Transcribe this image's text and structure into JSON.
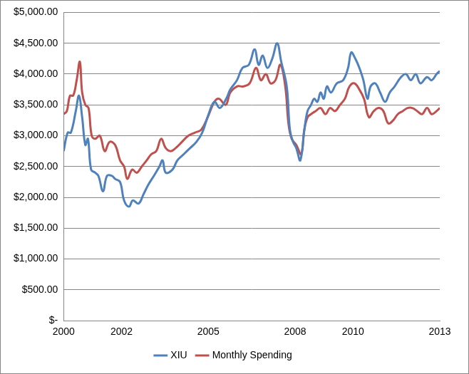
{
  "chart_data": {
    "type": "line",
    "xlim": [
      2000,
      2013
    ],
    "xticks": [
      2000,
      2002,
      2005,
      2008,
      2010,
      2013
    ],
    "ylim": [
      0,
      5000
    ],
    "yticks": [
      {
        "value": 0,
        "label": "$-"
      },
      {
        "value": 500,
        "label": "$500.00"
      },
      {
        "value": 1000,
        "label": "$1,000.00"
      },
      {
        "value": 1500,
        "label": "$1,500.00"
      },
      {
        "value": 2000,
        "label": "$2,000.00"
      },
      {
        "value": 2500,
        "label": "$2,500.00"
      },
      {
        "value": 3000,
        "label": "$3,000.00"
      },
      {
        "value": 3500,
        "label": "$3,500.00"
      },
      {
        "value": 4000,
        "label": "$4,000.00"
      },
      {
        "value": 4500,
        "label": "$4,500.00"
      },
      {
        "value": 5000,
        "label": "$5,000.00"
      }
    ],
    "grid": "y",
    "legend": "bottom",
    "series": [
      {
        "name": "XIU",
        "color": "#4f81bd",
        "x": [
          2000.0,
          2000.14,
          2000.25,
          2000.42,
          2000.53,
          2000.64,
          2000.75,
          2000.84,
          2000.95,
          2001.09,
          2001.2,
          2001.36,
          2001.5,
          2001.67,
          2001.78,
          2001.95,
          2002.09,
          2002.26,
          2002.39,
          2002.59,
          2002.76,
          2002.92,
          2003.12,
          2003.31,
          2003.42,
          2003.53,
          2003.76,
          2003.93,
          2004.15,
          2004.37,
          2004.59,
          2004.79,
          2005.01,
          2005.21,
          2005.4,
          2005.62,
          2005.76,
          2005.99,
          2006.18,
          2006.4,
          2006.6,
          2006.74,
          2006.88,
          2007.04,
          2007.21,
          2007.38,
          2007.52,
          2007.71,
          2007.82,
          2007.93,
          2008.04,
          2008.18,
          2008.32,
          2008.43,
          2008.55,
          2008.66,
          2008.77,
          2008.88,
          2008.99,
          2009.1,
          2009.24,
          2009.44,
          2009.66,
          2009.83,
          2009.94,
          2010.08,
          2010.22,
          2010.36,
          2010.5,
          2010.61,
          2010.77,
          2010.94,
          2011.11,
          2011.27,
          2011.44,
          2011.66,
          2011.83,
          2012.0,
          2012.17,
          2012.33,
          2012.56,
          2012.72,
          2012.89,
          2013.0
        ],
        "values": [
          2750,
          3050,
          3050,
          3400,
          3650,
          3300,
          2850,
          2950,
          2450,
          2400,
          2350,
          2100,
          2350,
          2350,
          2300,
          2250,
          1950,
          1850,
          1950,
          1900,
          2050,
          2200,
          2350,
          2500,
          2600,
          2400,
          2450,
          2600,
          2700,
          2800,
          2900,
          3050,
          3350,
          3550,
          3450,
          3600,
          3750,
          3900,
          4100,
          4150,
          4400,
          4150,
          4300,
          4100,
          4250,
          4500,
          4200,
          3800,
          3100,
          2900,
          2800,
          2600,
          3100,
          3400,
          3500,
          3600,
          3550,
          3700,
          3600,
          3800,
          3700,
          3850,
          3900,
          4100,
          4350,
          4250,
          4100,
          3900,
          3600,
          3800,
          3850,
          3700,
          3550,
          3700,
          3800,
          3950,
          4000,
          3900,
          4000,
          3850,
          3950,
          3900,
          4000,
          4050
        ]
      },
      {
        "name": "Monthly Spending",
        "color": "#c0504d",
        "x": [
          2000.0,
          2000.11,
          2000.22,
          2000.33,
          2000.45,
          2000.56,
          2000.64,
          2000.75,
          2000.86,
          2000.97,
          2001.09,
          2001.25,
          2001.42,
          2001.59,
          2001.78,
          2001.95,
          2002.09,
          2002.2,
          2002.37,
          2002.53,
          2002.7,
          2002.87,
          2003.03,
          2003.2,
          2003.37,
          2003.53,
          2003.7,
          2003.87,
          2004.09,
          2004.31,
          2004.54,
          2004.76,
          2004.98,
          2005.21,
          2005.37,
          2005.6,
          2005.76,
          2005.99,
          2006.21,
          2006.43,
          2006.65,
          2006.82,
          2006.99,
          2007.15,
          2007.32,
          2007.49,
          2007.66,
          2007.77,
          2007.88,
          2008.04,
          2008.21,
          2008.32,
          2008.43,
          2008.55,
          2008.71,
          2008.88,
          2009.05,
          2009.21,
          2009.38,
          2009.55,
          2009.72,
          2009.88,
          2010.05,
          2010.22,
          2010.38,
          2010.55,
          2010.72,
          2010.89,
          2011.05,
          2011.22,
          2011.39,
          2011.55,
          2011.72,
          2011.89,
          2012.05,
          2012.22,
          2012.39,
          2012.56,
          2012.72,
          2012.89,
          2013.0
        ],
        "values": [
          3350,
          3400,
          3650,
          3650,
          3900,
          4200,
          3700,
          3500,
          3450,
          3000,
          2950,
          3000,
          2750,
          2900,
          2850,
          2600,
          2500,
          2300,
          2450,
          2400,
          2500,
          2600,
          2700,
          2750,
          2950,
          2800,
          2750,
          2800,
          2900,
          3000,
          3050,
          3100,
          3300,
          3550,
          3600,
          3500,
          3700,
          3800,
          3800,
          3850,
          4100,
          3900,
          4000,
          3850,
          3900,
          4150,
          3800,
          3200,
          2950,
          2850,
          2700,
          3100,
          3300,
          3350,
          3400,
          3450,
          3350,
          3450,
          3400,
          3500,
          3600,
          3800,
          3850,
          3750,
          3600,
          3300,
          3400,
          3450,
          3400,
          3200,
          3250,
          3350,
          3400,
          3450,
          3450,
          3400,
          3350,
          3450,
          3350,
          3400,
          3450
        ]
      }
    ]
  }
}
